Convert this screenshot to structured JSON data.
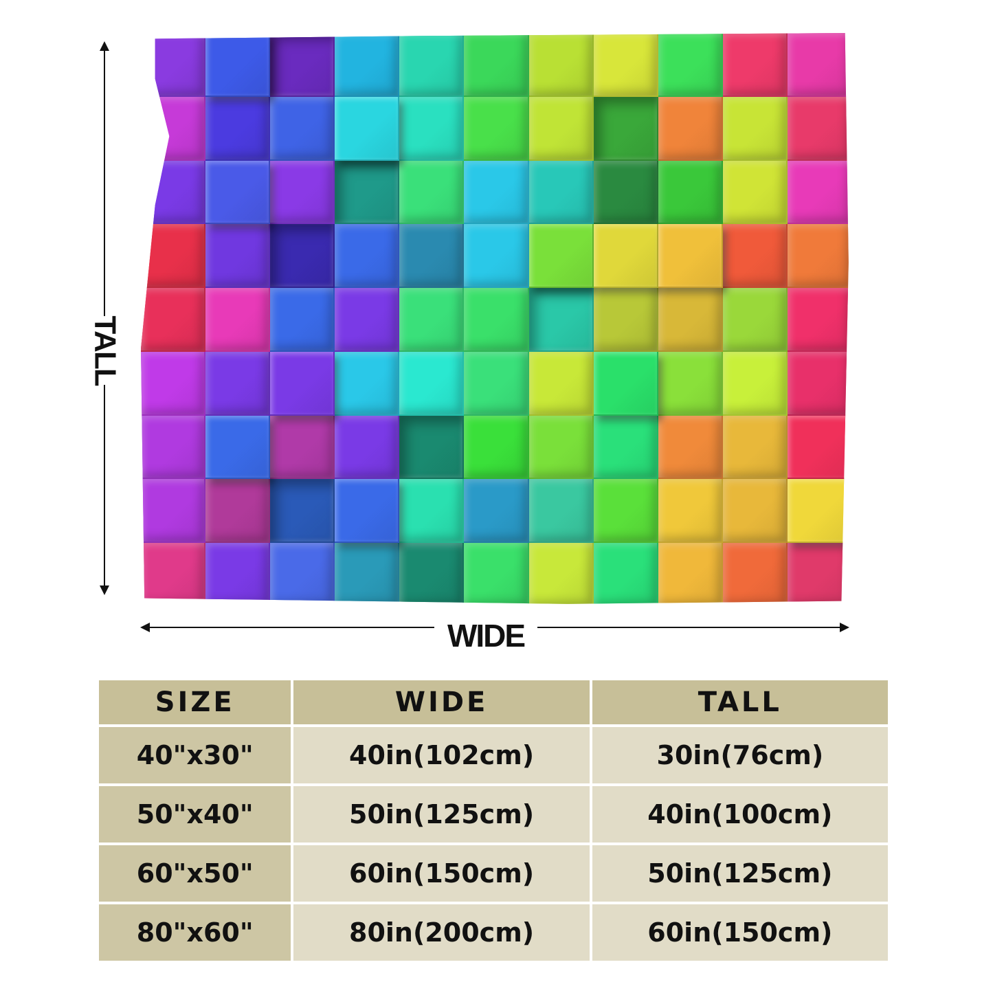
{
  "diagram": {
    "tall_label": "TALL",
    "wide_label": "WIDE",
    "blanket_pattern": "rainbow-3d-cubes",
    "colors": {
      "arrow": "#111111",
      "header_bg": "#c7bf98",
      "size_col_bg": "#cdc6a4",
      "cell_bg": "#e1dcc7"
    },
    "cube_grid": [
      [
        "#8a3be0",
        "#3d5ae8",
        "#6a2bbf",
        "#22b4e0",
        "#29d6b0",
        "#3bd85a",
        "#b9e034",
        "#d8e63a",
        "#3ce05a",
        "#ee3a6a",
        "#e83aa8"
      ],
      [
        "#c63ad8",
        "#4b3be0",
        "#3f63e6",
        "#2ad6e0",
        "#2ae0c0",
        "#49e04a",
        "#c0e436",
        "#3aa83a",
        "#f0843a",
        "#c8e436",
        "#e83a6a"
      ],
      [
        "#7a3ae6",
        "#4a5ae8",
        "#8a3ae6",
        "#1f9a8a",
        "#3ae07a",
        "#2ac8e8",
        "#28c8b8",
        "#2a8a40",
        "#3ac83a",
        "#d0e436",
        "#e83ab8"
      ],
      [
        "#e8304a",
        "#7038e0",
        "#3a2ab0",
        "#3a6ae8",
        "#2a8ab0",
        "#2ac8e8",
        "#7ae03a",
        "#e0d83a",
        "#f0c03a",
        "#f05a3a",
        "#f07a3a"
      ],
      [
        "#e8305a",
        "#e83ab8",
        "#3a6ae8",
        "#7a3ae6",
        "#3ae07a",
        "#3ae06a",
        "#2ac8a8",
        "#b8c838",
        "#d8b838",
        "#9ad83a",
        "#f0306a"
      ],
      [
        "#c03ae8",
        "#7a3ae6",
        "#7a3ae6",
        "#2ac8e8",
        "#2ae8d0",
        "#3ae07a",
        "#c8e838",
        "#2ae06a",
        "#8ae03a",
        "#c8f03a",
        "#e8306a"
      ],
      [
        "#b03ae0",
        "#3a6ae8",
        "#b03aa8",
        "#7a3ae6",
        "#1a8a70",
        "#3ae03a",
        "#7ae03a",
        "#2ae07a",
        "#f08a3a",
        "#e8b83a",
        "#f0305a"
      ],
      [
        "#b03ae0",
        "#b03a9a",
        "#2a5ab8",
        "#3a6ae8",
        "#2ae0b0",
        "#2a9ac8",
        "#3ac8a0",
        "#5ae03a",
        "#f0c83a",
        "#e8b83a",
        "#f0d83a"
      ],
      [
        "#e03a8a",
        "#7a3ae6",
        "#4a6ae8",
        "#2a9ab8",
        "#1a8a70",
        "#3ae06a",
        "#c8e83a",
        "#2ae07a",
        "#f0b83a",
        "#f06a3a",
        "#e03a6a"
      ]
    ],
    "raised_cells": [
      "0,1",
      "1,3",
      "2,1",
      "3,6",
      "3,7",
      "3,8",
      "5,2",
      "5,7",
      "6,1",
      "6,10",
      "7,3",
      "7,10"
    ],
    "sunk_cells": [
      "0,2",
      "1,7",
      "2,3",
      "3,2",
      "4,6",
      "6,4",
      "7,2"
    ]
  },
  "table": {
    "headers": [
      "SIZE",
      "WIDE",
      "TALL"
    ],
    "rows": [
      {
        "size": "40\"x30\"",
        "wide": "40in(102cm)",
        "tall": "30in(76cm)"
      },
      {
        "size": "50\"x40\"",
        "wide": "50in(125cm)",
        "tall": "40in(100cm)"
      },
      {
        "size": "60\"x50\"",
        "wide": "60in(150cm)",
        "tall": "50in(125cm)"
      },
      {
        "size": "80\"x60\"",
        "wide": "80in(200cm)",
        "tall": "60in(150cm)"
      }
    ]
  }
}
